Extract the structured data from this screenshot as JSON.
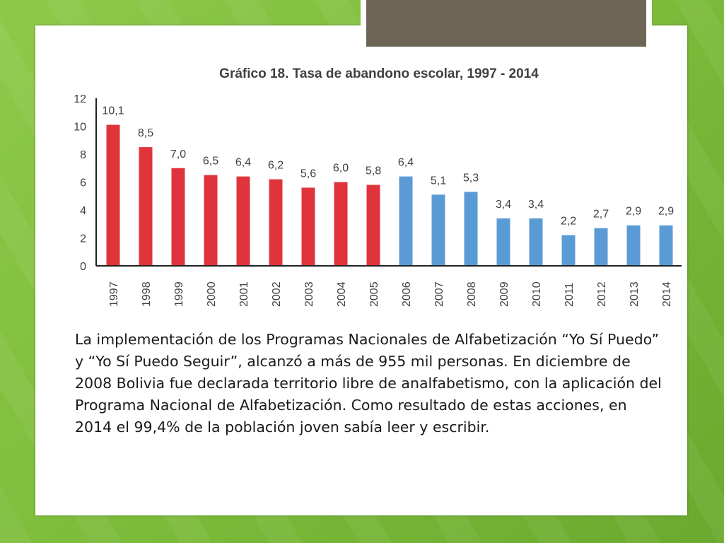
{
  "chart_data": {
    "type": "bar",
    "title": "Gráfico 18. Tasa de abandono escolar, 1997 - 2014",
    "xlabel": "",
    "ylabel": "",
    "ylim": [
      0,
      12
    ],
    "yticks": [
      0,
      2,
      4,
      6,
      8,
      10,
      12
    ],
    "categories": [
      "1997",
      "1998",
      "1999",
      "2000",
      "2001",
      "2002",
      "2003",
      "2004",
      "2005",
      "2006",
      "2007",
      "2008",
      "2009",
      "2010",
      "2011",
      "2012",
      "2013",
      "2014"
    ],
    "values": [
      10.1,
      8.5,
      7.0,
      6.5,
      6.4,
      6.2,
      5.6,
      6.0,
      5.8,
      6.4,
      5.1,
      5.3,
      3.4,
      3.4,
      2.2,
      2.7,
      2.9,
      2.9
    ],
    "value_labels": [
      "10,1",
      "8,5",
      "7,0",
      "6,5",
      "6,4",
      "6,2",
      "5,6",
      "6,0",
      "5,8",
      "6,4",
      "5,1",
      "5,3",
      "3,4",
      "3,4",
      "2,2",
      "2,7",
      "2,9",
      "2,9"
    ],
    "bar_colors": [
      "#e0343d",
      "#e0343d",
      "#e0343d",
      "#e0343d",
      "#e0343d",
      "#e0343d",
      "#e0343d",
      "#e0343d",
      "#e0343d",
      "#5b9bd5",
      "#5b9bd5",
      "#5b9bd5",
      "#5b9bd5",
      "#5b9bd5",
      "#5b9bd5",
      "#5b9bd5",
      "#5b9bd5",
      "#5b9bd5"
    ],
    "grid": false,
    "legend": "none"
  },
  "text": {
    "paragraph": "La implementación de los Programas Nacionales de Alfabetización “Yo Sí Puedo” y “Yo Sí Puedo Seguir”, alcanzó a más de 955 mil personas. En diciembre de 2008 Bolivia fue declarada territorio libre de analfabetismo, con la aplicación del Programa Nacional de Alfabetización. Como resultado de estas acciones, en 2014 el 99,4% de la población joven sabía leer y escribir."
  }
}
